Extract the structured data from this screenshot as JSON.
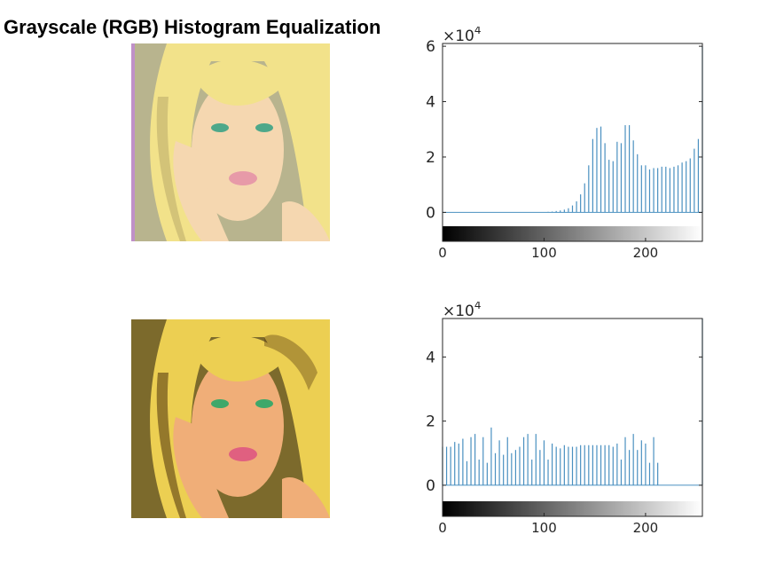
{
  "figure": {
    "title": "Grayscale (RGB) Histogram Equalization"
  },
  "images": [
    {
      "palette": {
        "bg": "#b8b48e",
        "hair": "#f2e28a",
        "skin": "#f5d7b0",
        "lips": "#e79aa8",
        "eyes": "#4ea88a",
        "shadow": "#9a8a55",
        "edge": "#c090c8"
      }
    },
    {
      "palette": {
        "bg": "#7c6a2c",
        "hair": "#eccf52",
        "skin": "#f0ae78",
        "lips": "#e06080",
        "eyes": "#3ea86a",
        "shadow": "#5a3d12",
        "edge": "#6a5520"
      }
    }
  ],
  "chart_data": [
    {
      "type": "bar",
      "title": "",
      "xlabel": "",
      "ylabel": "",
      "exponent_label": "×10",
      "exponent_power": "4",
      "xlim": [
        0,
        256
      ],
      "ylim": [
        -0.5,
        6.1
      ],
      "xticks": [
        "0",
        "100",
        "200"
      ],
      "xtick_values": [
        0,
        100,
        200
      ],
      "yticks": [
        "0",
        "2",
        "4",
        "6"
      ],
      "ytick_values": [
        0,
        2,
        4,
        6
      ],
      "bar_color": "#4a90c0",
      "x": [
        100,
        104,
        108,
        112,
        116,
        120,
        124,
        128,
        132,
        136,
        140,
        144,
        148,
        152,
        156,
        160,
        164,
        168,
        172,
        176,
        180,
        184,
        188,
        192,
        196,
        200,
        204,
        208,
        212,
        216,
        220,
        224,
        228,
        232,
        236,
        240,
        244,
        248,
        252,
        256
      ],
      "values": [
        0.01,
        0.02,
        0.03,
        0.05,
        0.07,
        0.1,
        0.15,
        0.25,
        0.4,
        0.65,
        1.05,
        1.7,
        2.65,
        3.05,
        3.1,
        2.5,
        1.9,
        1.85,
        2.55,
        2.5,
        3.15,
        3.15,
        2.6,
        2.1,
        1.7,
        1.7,
        1.55,
        1.6,
        1.6,
        1.65,
        1.65,
        1.6,
        1.65,
        1.7,
        1.8,
        1.85,
        1.95,
        2.3,
        2.65,
        6.0
      ]
    },
    {
      "type": "bar",
      "title": "",
      "xlabel": "",
      "ylabel": "",
      "exponent_label": "×10",
      "exponent_power": "4",
      "xlim": [
        0,
        256
      ],
      "ylim": [
        -0.5,
        5.2
      ],
      "xticks": [
        "0",
        "100",
        "200"
      ],
      "xtick_values": [
        0,
        100,
        200
      ],
      "yticks": [
        "0",
        "2",
        "4"
      ],
      "ytick_values": [
        0,
        2,
        4
      ],
      "bar_color": "#4a90c0",
      "x": [
        0,
        4,
        8,
        12,
        16,
        20,
        24,
        28,
        32,
        36,
        40,
        44,
        48,
        52,
        56,
        60,
        64,
        68,
        72,
        76,
        80,
        84,
        88,
        92,
        96,
        100,
        104,
        108,
        112,
        116,
        120,
        124,
        128,
        132,
        136,
        140,
        144,
        148,
        152,
        156,
        160,
        164,
        168,
        172,
        176,
        180,
        184,
        188,
        192,
        196,
        200,
        204,
        208,
        212,
        256
      ],
      "values": [
        1.2,
        1.2,
        1.2,
        1.35,
        1.3,
        1.45,
        0.75,
        1.5,
        1.6,
        0.8,
        1.5,
        0.7,
        1.8,
        1.0,
        1.4,
        0.95,
        1.5,
        1.0,
        1.1,
        1.2,
        1.5,
        1.6,
        0.8,
        1.6,
        1.1,
        1.4,
        0.8,
        1.3,
        1.2,
        1.15,
        1.25,
        1.2,
        1.2,
        1.2,
        1.25,
        1.25,
        1.25,
        1.25,
        1.25,
        1.25,
        1.25,
        1.25,
        1.2,
        1.3,
        0.8,
        1.5,
        1.1,
        1.6,
        1.1,
        1.4,
        1.3,
        0.7,
        1.5,
        0.7,
        5.2
      ]
    }
  ]
}
